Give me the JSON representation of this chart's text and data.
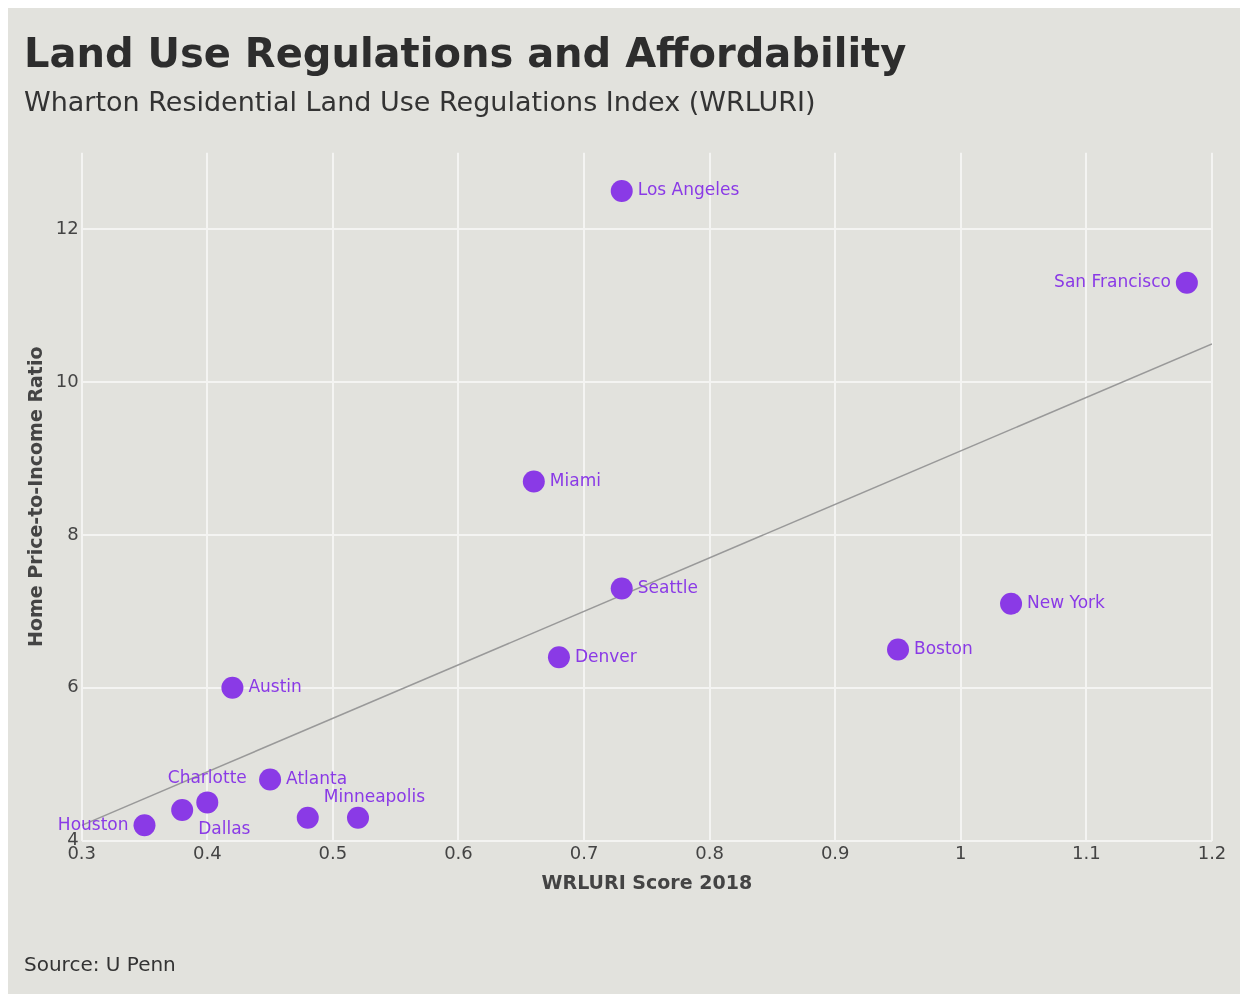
{
  "chart_data": {
    "type": "scatter",
    "title": "Land Use Regulations and Affordability",
    "subtitle": "Wharton Residential Land Use Regulations Index (WRLURI)",
    "xlabel": "WRLURI Score 2018",
    "ylabel": "Home Price-to-Income Ratio",
    "xlim": [
      0.3,
      1.2
    ],
    "xticks": [
      0.3,
      0.4,
      0.5,
      0.6,
      0.7,
      0.8,
      0.9,
      1,
      1.1,
      1.2
    ],
    "ylim": [
      4,
      13
    ],
    "yticks": [
      4,
      6,
      8,
      10,
      12
    ],
    "grid": true,
    "legend": false,
    "series": [
      {
        "type": "scatter",
        "marker": "circle",
        "color": "#8a3ae6",
        "x": [
          0.73,
          1.18,
          0.66,
          0.73,
          1.04,
          0.95,
          0.68,
          0.42,
          0.45,
          0.4,
          0.38,
          0.35,
          0.48,
          0.52
        ],
        "values": [
          12.5,
          11.3,
          8.7,
          7.3,
          7.1,
          6.5,
          6.4,
          6.0,
          4.8,
          4.5,
          4.4,
          4.2,
          4.3,
          4.3
        ]
      },
      {
        "type": "line",
        "marker": "none",
        "color": "#999999",
        "x": [
          0.3,
          1.2
        ],
        "values": [
          4.2,
          10.5
        ]
      }
    ],
    "annotations": [
      {
        "text": "Los Angeles",
        "x": 0.73,
        "y": 12.5
      },
      {
        "text": "San Francisco",
        "x": 1.18,
        "y": 11.3
      },
      {
        "text": "Miami",
        "x": 0.66,
        "y": 8.7
      },
      {
        "text": "Seattle",
        "x": 0.73,
        "y": 7.3
      },
      {
        "text": "New York",
        "x": 1.04,
        "y": 7.1
      },
      {
        "text": "Boston",
        "x": 0.95,
        "y": 6.5
      },
      {
        "text": "Denver",
        "x": 0.68,
        "y": 6.4
      },
      {
        "text": "Austin",
        "x": 0.42,
        "y": 6.0
      },
      {
        "text": "Atlanta",
        "x": 0.45,
        "y": 4.8
      },
      {
        "text": "Charlotte",
        "x": 0.4,
        "y": 4.5
      },
      {
        "text": "Dallas",
        "x": 0.38,
        "y": 4.4
      },
      {
        "text": "Houston",
        "x": 0.35,
        "y": 4.2
      },
      {
        "text": "Minneapolis",
        "x": 0.48,
        "y": 4.3
      },
      "Source: U Penn"
    ]
  }
}
